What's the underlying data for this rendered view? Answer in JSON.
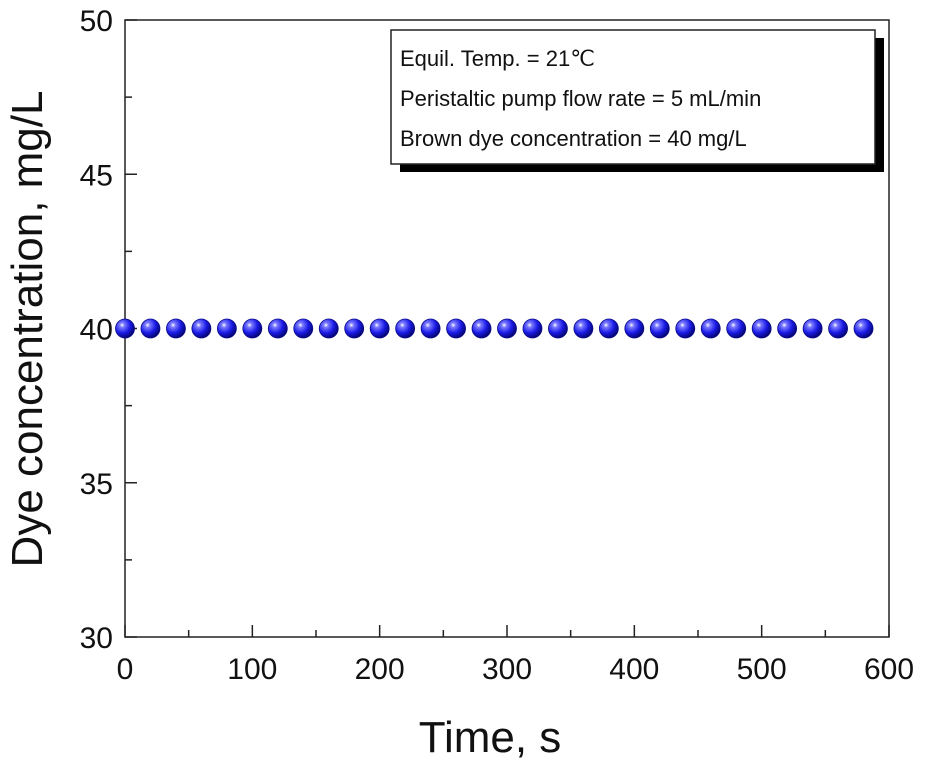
{
  "chart_data": {
    "type": "scatter",
    "xlabel": "Time, s",
    "ylabel": "Dye concentration, mg/L",
    "xlim": [
      0,
      600
    ],
    "ylim": [
      30,
      50
    ],
    "x_ticks": [
      "0",
      "100",
      "200",
      "300",
      "400",
      "500",
      "600"
    ],
    "y_ticks": [
      "30",
      "35",
      "40",
      "45",
      "50"
    ],
    "grid": false,
    "legend_position": "top-right",
    "annotations": [
      "Equil. Temp. = 21℃",
      "Peristaltic pump flow rate = 5 mL/min",
      "Brown dye concentration = 40 mg/L"
    ],
    "marker_color": "#1a1ae6",
    "series": [
      {
        "x": [
          0,
          20,
          40,
          60,
          80,
          100,
          120,
          140,
          160,
          180,
          200,
          220,
          240,
          260,
          280,
          300,
          320,
          340,
          360,
          380,
          400,
          420,
          440,
          460,
          480,
          500,
          520,
          540,
          560,
          580
        ],
        "y": [
          40,
          40,
          40,
          40,
          40,
          40,
          40,
          40,
          40,
          40,
          40,
          40,
          40,
          40,
          40,
          40,
          40,
          40,
          40,
          40,
          40,
          40,
          40,
          40,
          40,
          40,
          40,
          40,
          40,
          40
        ]
      }
    ]
  }
}
